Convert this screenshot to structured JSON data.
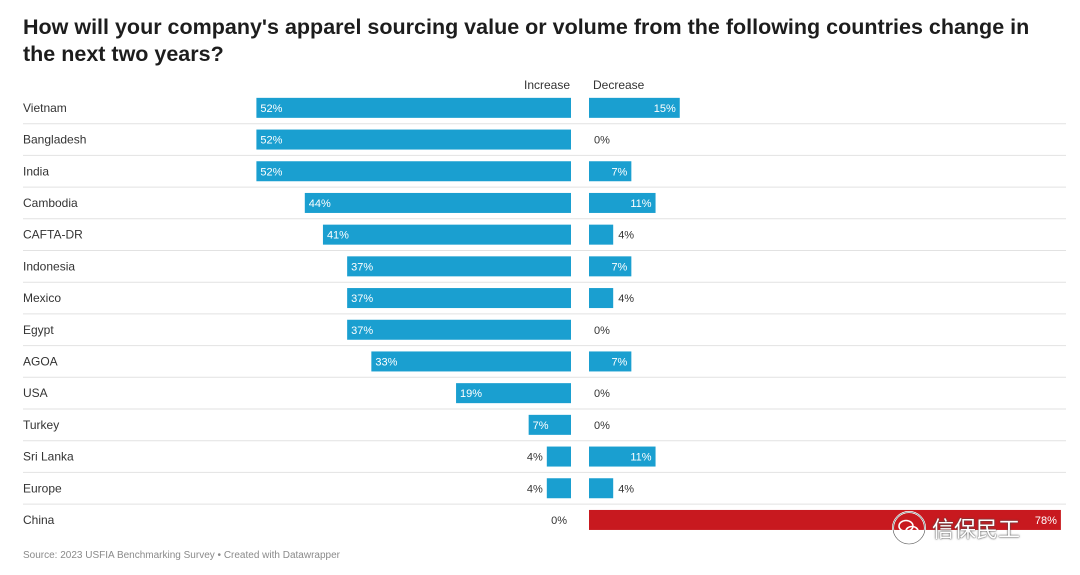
{
  "title": "How will your company's apparel sourcing value or volume from the following countries change in the next two years?",
  "columns": {
    "increase": "Increase",
    "decrease": "Decrease"
  },
  "source": "Source: 2023 USFIA Benchmarking Survey • Created with Datawrapper",
  "watermark": "信保民工",
  "colors": {
    "bar": "#1a9fd0",
    "highlight": "#c8191f",
    "divider": "#e2e2e2"
  },
  "chart_data": {
    "type": "bar",
    "categories": [
      "Vietnam",
      "Bangladesh",
      "India",
      "Cambodia",
      "CAFTA-DR",
      "Indonesia",
      "Mexico",
      "Egypt",
      "AGOA",
      "USA",
      "Turkey",
      "Sri Lanka",
      "Europe",
      "China"
    ],
    "series": [
      {
        "name": "Increase",
        "values": [
          52,
          52,
          52,
          44,
          41,
          37,
          37,
          37,
          33,
          19,
          7,
          4,
          4,
          0
        ]
      },
      {
        "name": "Decrease",
        "values": [
          15,
          0,
          7,
          11,
          4,
          7,
          4,
          0,
          7,
          0,
          0,
          11,
          4,
          78
        ]
      }
    ],
    "unit": "%",
    "highlight": "China"
  }
}
